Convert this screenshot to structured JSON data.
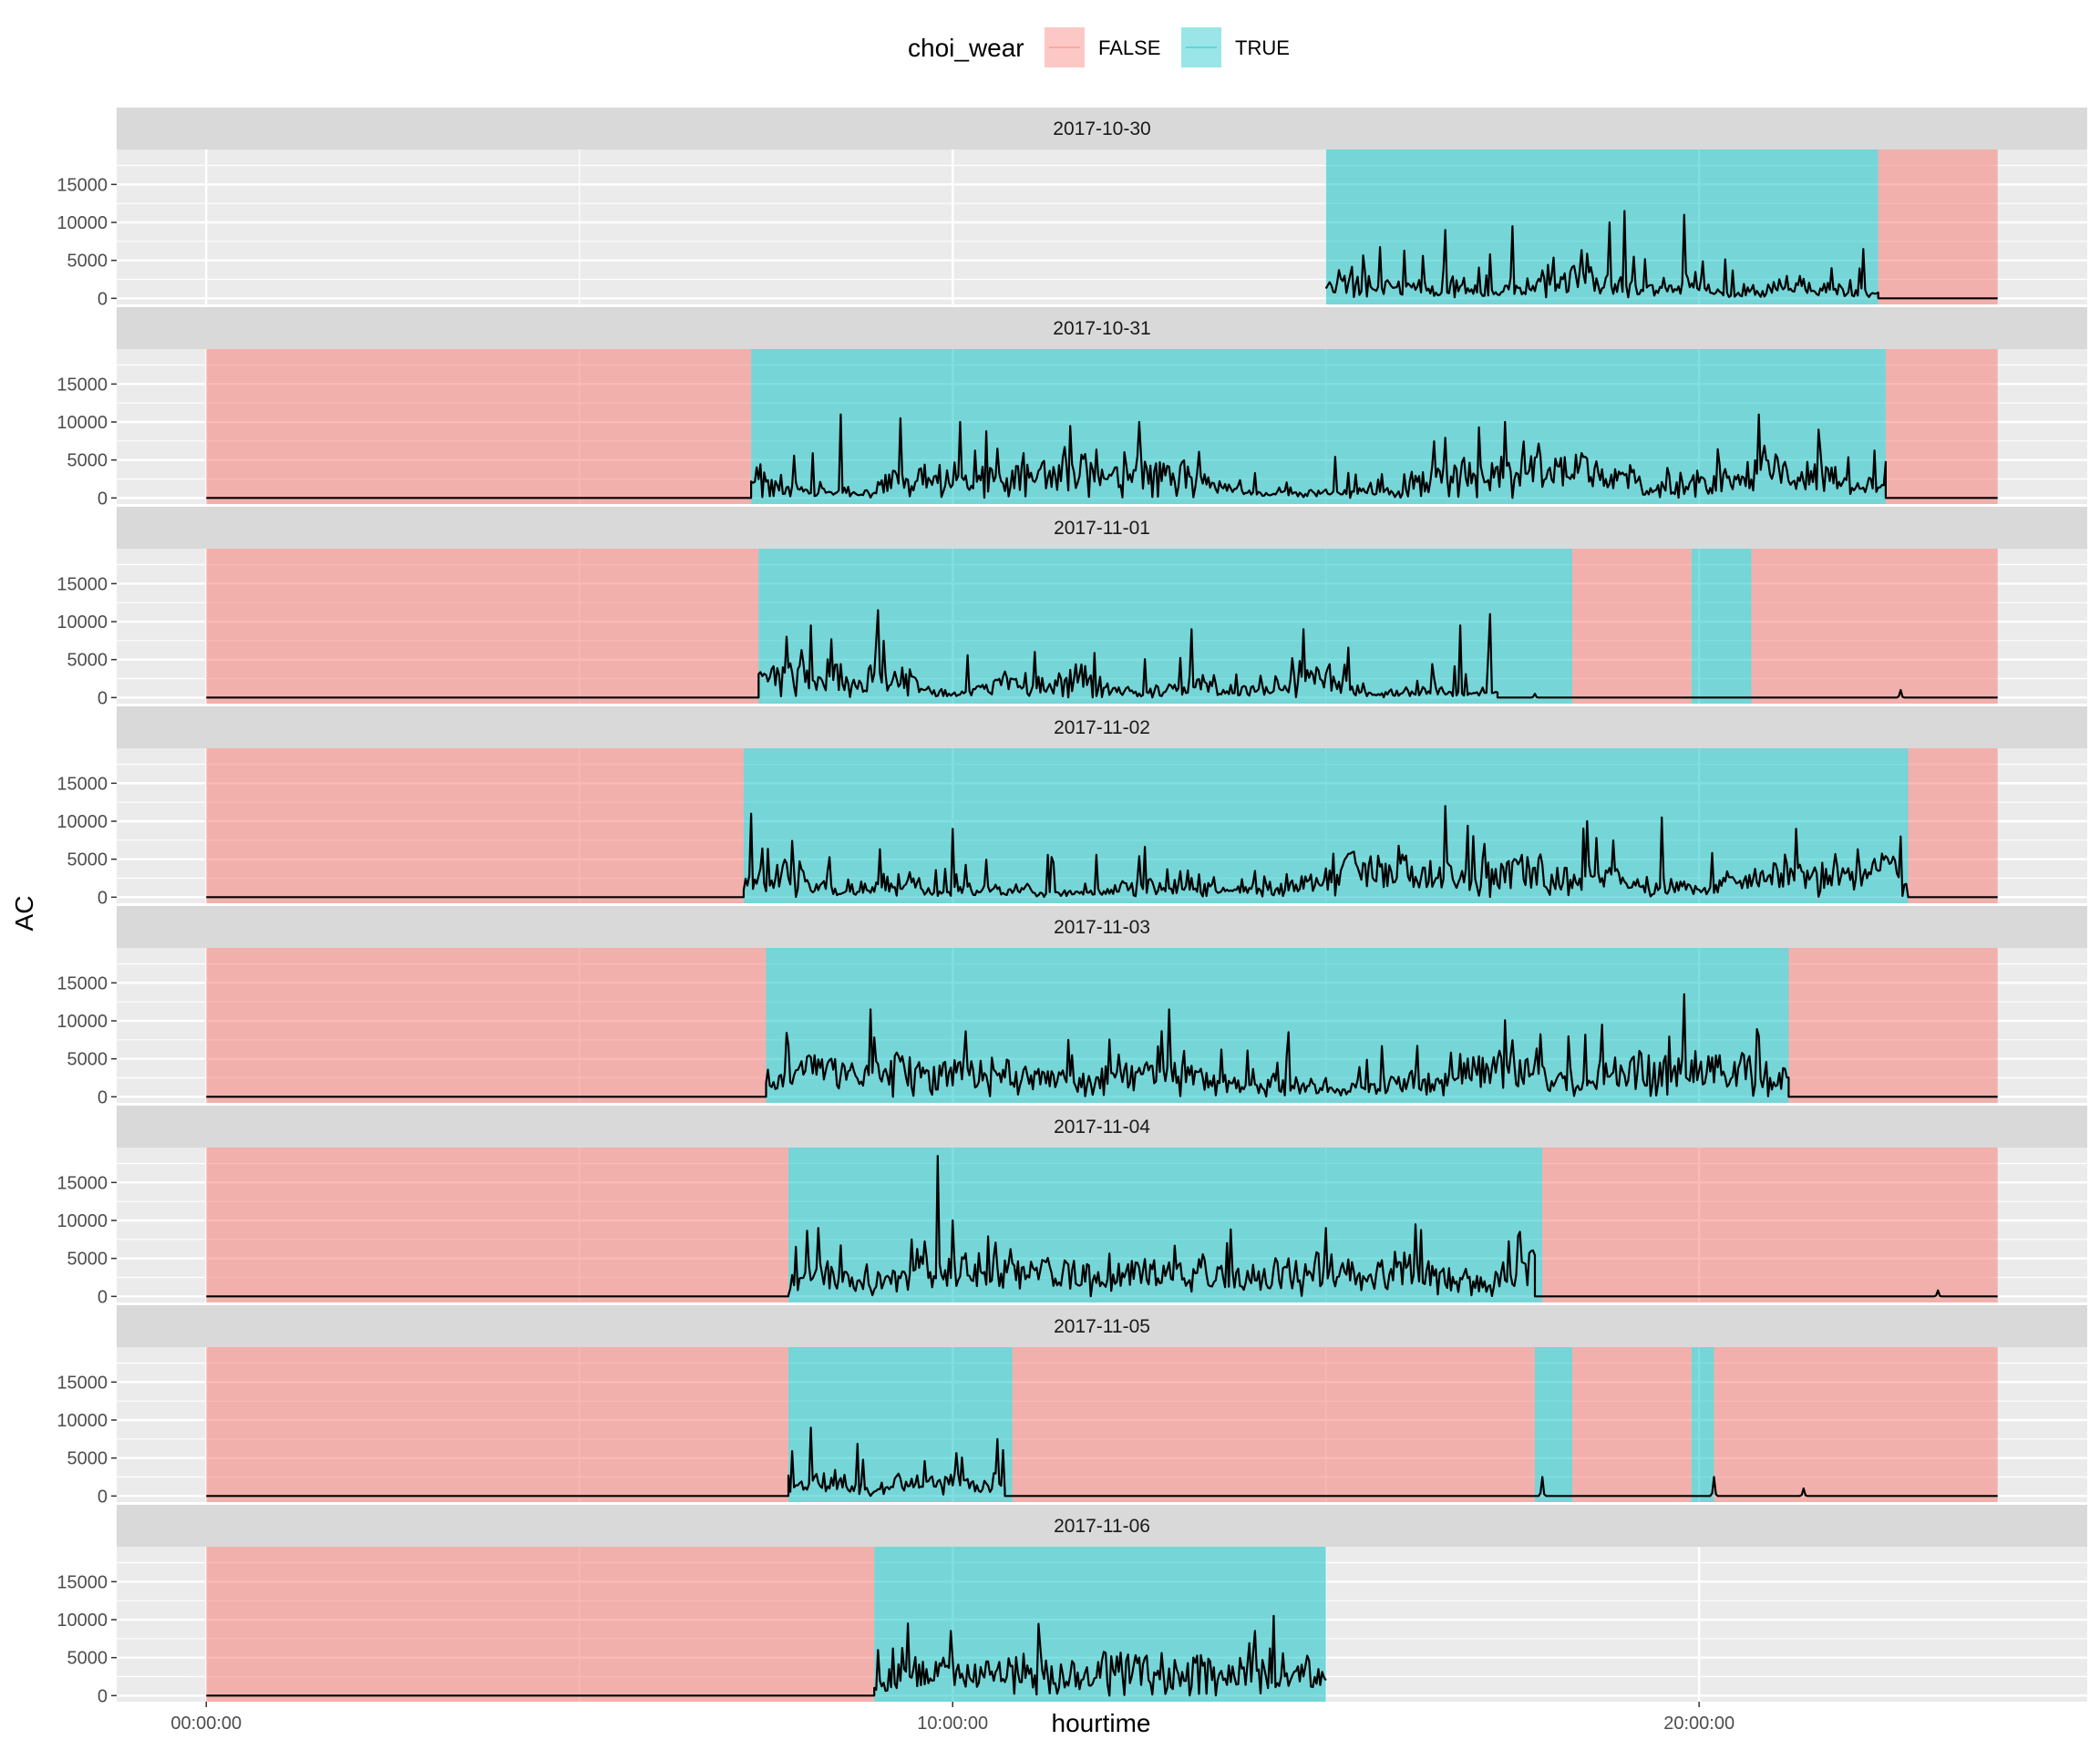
{
  "chart_data": {
    "type": "area",
    "title": "",
    "xlabel": "hourtime",
    "ylabel": "AC",
    "xlim_hours": [
      -1.2,
      25.2
    ],
    "ylim": [
      -800,
      19600
    ],
    "x_ticks": [
      {
        "hour": 0,
        "label": "00:00:00"
      },
      {
        "hour": 10,
        "label": "10:00:00"
      },
      {
        "hour": 20,
        "label": "20:00:00"
      }
    ],
    "y_ticks": [
      0,
      5000,
      10000,
      15000
    ],
    "grid": true,
    "legend": {
      "title": "choi_wear",
      "placement": "top",
      "entries": [
        {
          "label": "FALSE",
          "color": "#F8766D"
        },
        {
          "label": "TRUE",
          "color": "#00BFC4"
        }
      ]
    },
    "line_color": "#000000",
    "panels": [
      {
        "date": "2017-10-30",
        "wear_periods": [
          {
            "start": 15.0,
            "end": 22.4,
            "wear": "TRUE"
          },
          {
            "start": 22.4,
            "end": 24.0,
            "wear": "FALSE"
          }
        ],
        "ac_series": [
          {
            "start": 15.0,
            "end": 22.4,
            "level": "active",
            "peaks": [
              [
                16.6,
                9000
              ],
              [
                17.5,
                9500
              ],
              [
                18.8,
                10000
              ],
              [
                19.0,
                11500
              ],
              [
                19.8,
                11000
              ],
              [
                22.2,
                6500
              ]
            ]
          },
          {
            "start": 22.4,
            "end": 24.0,
            "level": "zero",
            "peaks": []
          }
        ]
      },
      {
        "date": "2017-10-31",
        "wear_periods": [
          {
            "start": 0.0,
            "end": 7.3,
            "wear": "FALSE"
          },
          {
            "start": 7.3,
            "end": 22.5,
            "wear": "TRUE"
          },
          {
            "start": 22.5,
            "end": 24.0,
            "wear": "FALSE"
          }
        ],
        "ac_series": [
          {
            "start": 0.0,
            "end": 7.3,
            "level": "zero",
            "peaks": []
          },
          {
            "start": 7.3,
            "end": 22.5,
            "level": "active",
            "peaks": [
              [
                8.5,
                11000
              ],
              [
                9.3,
                10500
              ],
              [
                10.1,
                10000
              ],
              [
                12.5,
                10000
              ],
              [
                17.4,
                10000
              ],
              [
                20.8,
                11000
              ],
              [
                21.6,
                9000
              ]
            ]
          },
          {
            "start": 22.5,
            "end": 24.0,
            "level": "zero",
            "peaks": []
          }
        ]
      },
      {
        "date": "2017-11-01",
        "wear_periods": [
          {
            "start": 0.0,
            "end": 7.4,
            "wear": "FALSE"
          },
          {
            "start": 7.4,
            "end": 18.3,
            "wear": "TRUE"
          },
          {
            "start": 18.3,
            "end": 19.9,
            "wear": "FALSE"
          },
          {
            "start": 19.9,
            "end": 20.7,
            "wear": "TRUE"
          },
          {
            "start": 20.7,
            "end": 24.0,
            "wear": "FALSE"
          }
        ],
        "ac_series": [
          {
            "start": 0.0,
            "end": 7.4,
            "level": "zero",
            "peaks": []
          },
          {
            "start": 7.4,
            "end": 17.3,
            "level": "active",
            "peaks": [
              [
                8.1,
                9500
              ],
              [
                9.0,
                11500
              ],
              [
                13.2,
                9000
              ],
              [
                14.7,
                9000
              ],
              [
                16.8,
                9500
              ],
              [
                17.2,
                11000
              ]
            ]
          },
          {
            "start": 17.3,
            "end": 24.0,
            "level": "zero",
            "peaks": [
              [
                17.8,
                500
              ],
              [
                22.7,
                1000
              ]
            ]
          }
        ]
      },
      {
        "date": "2017-11-02",
        "wear_periods": [
          {
            "start": 0.0,
            "end": 7.2,
            "wear": "FALSE"
          },
          {
            "start": 7.2,
            "end": 22.8,
            "wear": "TRUE"
          },
          {
            "start": 22.8,
            "end": 24.0,
            "wear": "FALSE"
          }
        ],
        "ac_series": [
          {
            "start": 0.0,
            "end": 7.2,
            "level": "zero",
            "peaks": []
          },
          {
            "start": 7.2,
            "end": 22.8,
            "level": "active",
            "peaks": [
              [
                7.3,
                11000
              ],
              [
                10.0,
                9000
              ],
              [
                16.6,
                12000
              ],
              [
                18.5,
                10000
              ],
              [
                19.5,
                10500
              ],
              [
                21.3,
                9000
              ],
              [
                22.7,
                8000
              ]
            ]
          },
          {
            "start": 22.8,
            "end": 24.0,
            "level": "zero",
            "peaks": []
          }
        ]
      },
      {
        "date": "2017-11-03",
        "wear_periods": [
          {
            "start": 0.0,
            "end": 7.5,
            "wear": "FALSE"
          },
          {
            "start": 7.5,
            "end": 21.2,
            "wear": "TRUE"
          },
          {
            "start": 21.2,
            "end": 24.0,
            "wear": "FALSE"
          }
        ],
        "ac_series": [
          {
            "start": 0.0,
            "end": 7.5,
            "level": "zero",
            "peaks": []
          },
          {
            "start": 7.5,
            "end": 21.2,
            "level": "active",
            "peaks": [
              [
                8.9,
                11500
              ],
              [
                12.9,
                11500
              ],
              [
                14.5,
                8500
              ],
              [
                18.7,
                9500
              ],
              [
                19.8,
                13500
              ],
              [
                20.8,
                8000
              ]
            ]
          },
          {
            "start": 21.2,
            "end": 24.0,
            "level": "zero",
            "peaks": []
          }
        ]
      },
      {
        "date": "2017-11-04",
        "wear_periods": [
          {
            "start": 0.0,
            "end": 7.8,
            "wear": "FALSE"
          },
          {
            "start": 7.8,
            "end": 17.9,
            "wear": "TRUE"
          },
          {
            "start": 17.9,
            "end": 24.0,
            "wear": "FALSE"
          }
        ],
        "ac_series": [
          {
            "start": 0.0,
            "end": 7.8,
            "level": "zero",
            "peaks": []
          },
          {
            "start": 7.8,
            "end": 17.8,
            "level": "active",
            "peaks": [
              [
                8.2,
                9000
              ],
              [
                9.8,
                18500
              ],
              [
                10.0,
                10000
              ],
              [
                15.0,
                9000
              ],
              [
                16.2,
                9500
              ],
              [
                17.6,
                8500
              ]
            ]
          },
          {
            "start": 17.8,
            "end": 24.0,
            "level": "zero",
            "peaks": [
              [
                23.2,
                800
              ]
            ]
          }
        ]
      },
      {
        "date": "2017-11-05",
        "wear_periods": [
          {
            "start": 0.0,
            "end": 7.8,
            "wear": "FALSE"
          },
          {
            "start": 7.8,
            "end": 10.8,
            "wear": "TRUE"
          },
          {
            "start": 10.8,
            "end": 17.8,
            "wear": "FALSE"
          },
          {
            "start": 17.8,
            "end": 18.3,
            "wear": "TRUE"
          },
          {
            "start": 18.3,
            "end": 19.9,
            "wear": "FALSE"
          },
          {
            "start": 19.9,
            "end": 20.2,
            "wear": "TRUE"
          },
          {
            "start": 20.2,
            "end": 24.0,
            "wear": "FALSE"
          }
        ],
        "ac_series": [
          {
            "start": 0.0,
            "end": 7.8,
            "level": "zero",
            "peaks": []
          },
          {
            "start": 7.8,
            "end": 10.7,
            "level": "active",
            "peaks": [
              [
                8.1,
                9000
              ],
              [
                10.6,
                7500
              ]
            ]
          },
          {
            "start": 10.7,
            "end": 24.0,
            "level": "zero",
            "peaks": [
              [
                17.9,
                2500
              ],
              [
                20.2,
                2500
              ],
              [
                21.4,
                1000
              ]
            ]
          }
        ]
      },
      {
        "date": "2017-11-06",
        "wear_periods": [
          {
            "start": 0.0,
            "end": 8.95,
            "wear": "FALSE"
          },
          {
            "start": 8.95,
            "end": 15.0,
            "wear": "TRUE"
          }
        ],
        "ac_series": [
          {
            "start": 0.0,
            "end": 8.95,
            "level": "zero",
            "peaks": []
          },
          {
            "start": 8.95,
            "end": 15.0,
            "level": "active",
            "peaks": [
              [
                9.4,
                9500
              ],
              [
                14.3,
                10500
              ]
            ]
          }
        ]
      }
    ]
  }
}
